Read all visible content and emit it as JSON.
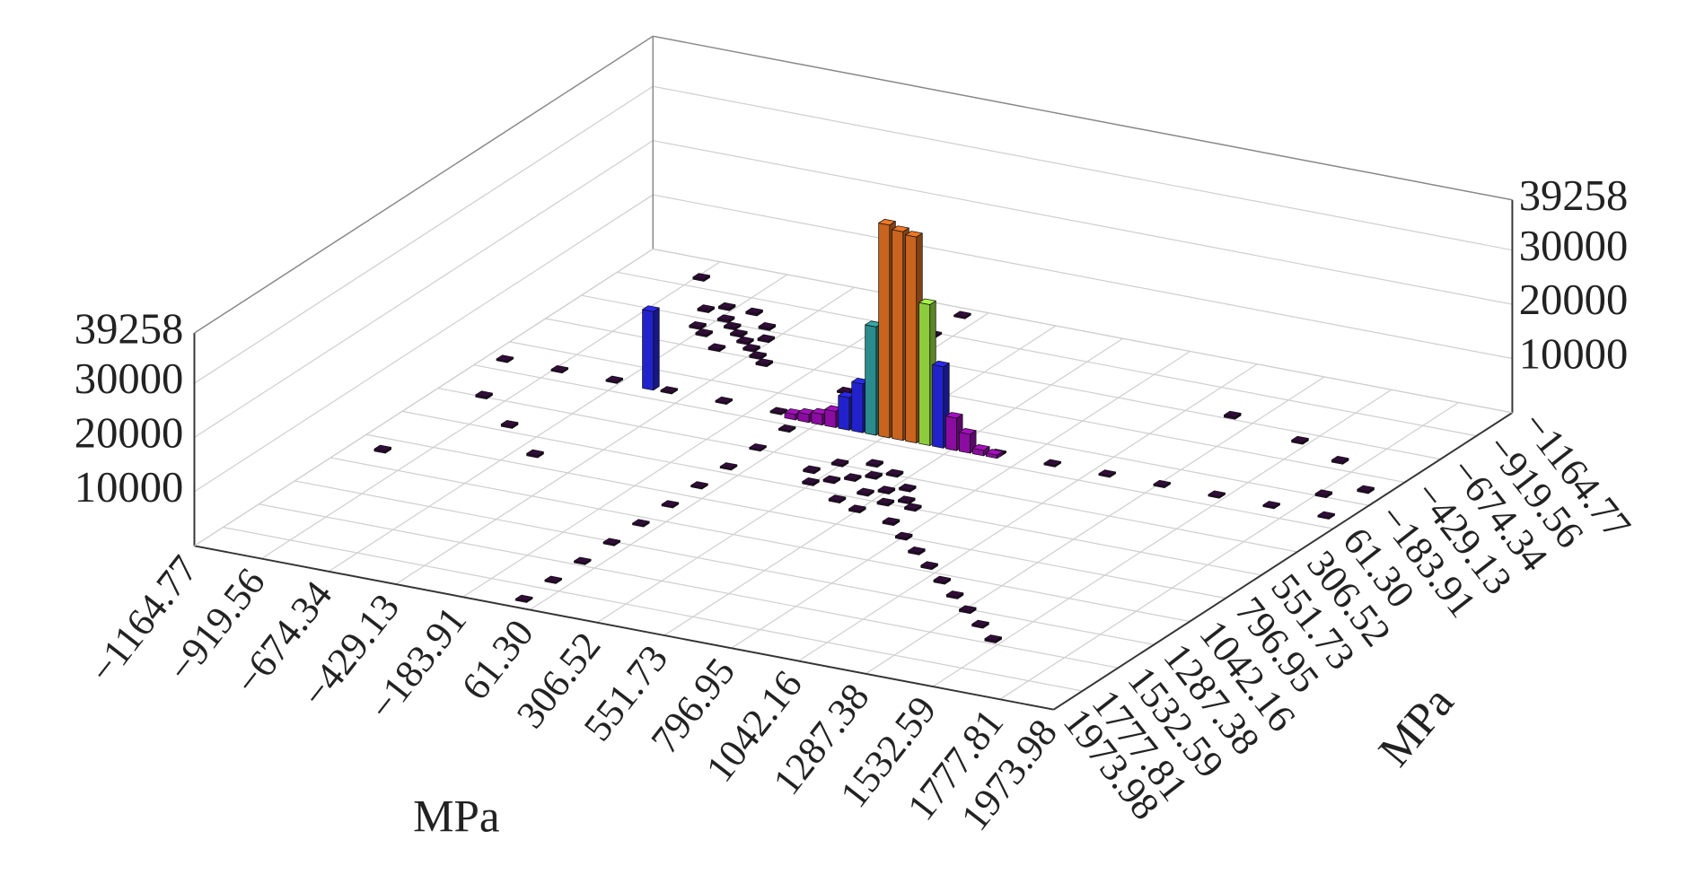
{
  "chart_data": {
    "type": "bar3d",
    "x_label": "MPa",
    "y_label": "MPa",
    "xlim": [
      -1164.77,
      1973.98
    ],
    "ylim": [
      -1164.77,
      1973.98
    ],
    "zlim": [
      0,
      39258
    ],
    "xticks": [
      {
        "value": -1164.77,
        "label": "−1164.77"
      },
      {
        "value": -919.56,
        "label": "−919.56"
      },
      {
        "value": -674.34,
        "label": "−674.34"
      },
      {
        "value": -429.13,
        "label": "−429.13"
      },
      {
        "value": -183.91,
        "label": "−183.91"
      },
      {
        "value": 61.3,
        "label": "61.30"
      },
      {
        "value": 306.52,
        "label": "306.52"
      },
      {
        "value": 551.73,
        "label": "551.73"
      },
      {
        "value": 796.95,
        "label": "796.95"
      },
      {
        "value": 1042.16,
        "label": "1042.16"
      },
      {
        "value": 1287.38,
        "label": "1287.38"
      },
      {
        "value": 1532.59,
        "label": "1532.59"
      },
      {
        "value": 1777.81,
        "label": "1777.81"
      },
      {
        "value": 1973.98,
        "label": "1973.98"
      }
    ],
    "yticks": [
      {
        "value": -1164.77,
        "label": "−1164.77"
      },
      {
        "value": -919.56,
        "label": "−919.56"
      },
      {
        "value": -674.34,
        "label": "−674.34"
      },
      {
        "value": -429.13,
        "label": "−429.13"
      },
      {
        "value": -183.91,
        "label": "−183.91"
      },
      {
        "value": 61.3,
        "label": "61.30"
      },
      {
        "value": 306.52,
        "label": "306.52"
      },
      {
        "value": 551.73,
        "label": "551.73"
      },
      {
        "value": 796.95,
        "label": "796.95"
      },
      {
        "value": 1042.16,
        "label": "1042.16"
      },
      {
        "value": 1287.38,
        "label": "1287.38"
      },
      {
        "value": 1532.59,
        "label": "1532.59"
      },
      {
        "value": 1777.81,
        "label": "1777.81"
      },
      {
        "value": 1973.98,
        "label": "1973.98"
      }
    ],
    "zticks": [
      10000,
      20000,
      30000,
      39258
    ],
    "grid": true,
    "series": [
      {
        "color": "#2a0a30",
        "x": [
          -1100,
          -900,
          -700,
          -500,
          -300,
          -100,
          700,
          900,
          1100,
          1300,
          1500,
          1700,
          1900,
          0,
          0,
          0,
          0,
          0,
          0,
          0,
          0,
          0,
          0,
          0,
          0,
          0,
          0,
          0
        ],
        "y": [
          -30,
          -30,
          -30,
          -30,
          -30,
          -30,
          -30,
          -30,
          -30,
          -30,
          -30,
          -30,
          -30,
          -1100,
          -900,
          -700,
          -500,
          -300,
          100,
          300,
          500,
          700,
          900,
          1100,
          1300,
          1500,
          1700,
          1900
        ],
        "values": [
          300,
          300,
          300,
          300,
          300,
          300,
          300,
          300,
          300,
          300,
          300,
          300,
          300,
          300,
          300,
          300,
          300,
          300,
          300,
          300,
          300,
          300,
          300,
          300,
          300,
          300,
          300,
          300
        ]
      },
      {
        "color": "#2a0a30",
        "x": [
          300,
          400,
          500,
          600,
          700,
          800,
          900,
          1000,
          1100,
          1200,
          1300,
          1400,
          1500,
          350,
          450,
          550,
          650,
          250,
          400,
          500,
          300,
          600,
          450,
          700,
          550,
          -700,
          -650,
          -600,
          -550,
          -500,
          -450,
          -400,
          -350,
          -750,
          -600,
          -700,
          -500,
          -450,
          -550,
          -650,
          -1000,
          -800,
          -600,
          -1050,
          1500,
          1700,
          1900,
          1200,
          -900,
          1800
        ],
        "y": [
          300,
          400,
          500,
          550,
          700,
          800,
          900,
          1000,
          1100,
          1200,
          1300,
          1400,
          1500,
          450,
          350,
          650,
          500,
          400,
          250,
          300,
          500,
          400,
          600,
          550,
          450,
          -800,
          -700,
          -650,
          -600,
          -550,
          -500,
          -450,
          -400,
          -750,
          -800,
          -600,
          -700,
          -600,
          -450,
          -550,
          300,
          500,
          700,
          900,
          -600,
          -500,
          -300,
          -700,
          -1000,
          -200
        ],
        "values": [
          400,
          400,
          400,
          400,
          400,
          400,
          400,
          400,
          400,
          400,
          400,
          400,
          400,
          400,
          400,
          400,
          400,
          400,
          400,
          400,
          400,
          400,
          400,
          400,
          400,
          400,
          400,
          400,
          400,
          400,
          400,
          400,
          400,
          400,
          400,
          400,
          400,
          400,
          400,
          400,
          400,
          400,
          400,
          400,
          400,
          400,
          400,
          400,
          400,
          400
        ]
      },
      {
        "color": "#8a0ca0",
        "x": [
          551.7,
          600.8,
          110.1,
          61.3,
          12.2,
          -36.8,
          650,
          699
        ],
        "y": [
          -10,
          -10,
          -10,
          -10,
          -10,
          -10,
          -10,
          -10
        ],
        "values": [
          6000,
          3500,
          3000,
          2000,
          1500,
          1000,
          1000,
          600
        ]
      },
      {
        "color": "#2222cc",
        "x": [
          -568,
          502.9,
          208.3,
          159.2
        ],
        "y": [
          -32,
          -10,
          -10,
          -10
        ],
        "values": [
          14500,
          15000,
          9000,
          6000
        ]
      },
      {
        "color": "#2a8c8c",
        "x": [
          257.4
        ],
        "y": [
          -10
        ],
        "values": [
          20000
        ]
      },
      {
        "color": "#8ccc3c",
        "x": [
          453.8
        ],
        "y": [
          -10
        ],
        "values": [
          26000
        ]
      },
      {
        "color": "#c8641e",
        "x": [
          306.52,
          355.6,
          404.7
        ],
        "y": [
          -10,
          -10,
          -10
        ],
        "values": [
          39258,
          38500,
          38000
        ]
      }
    ]
  }
}
